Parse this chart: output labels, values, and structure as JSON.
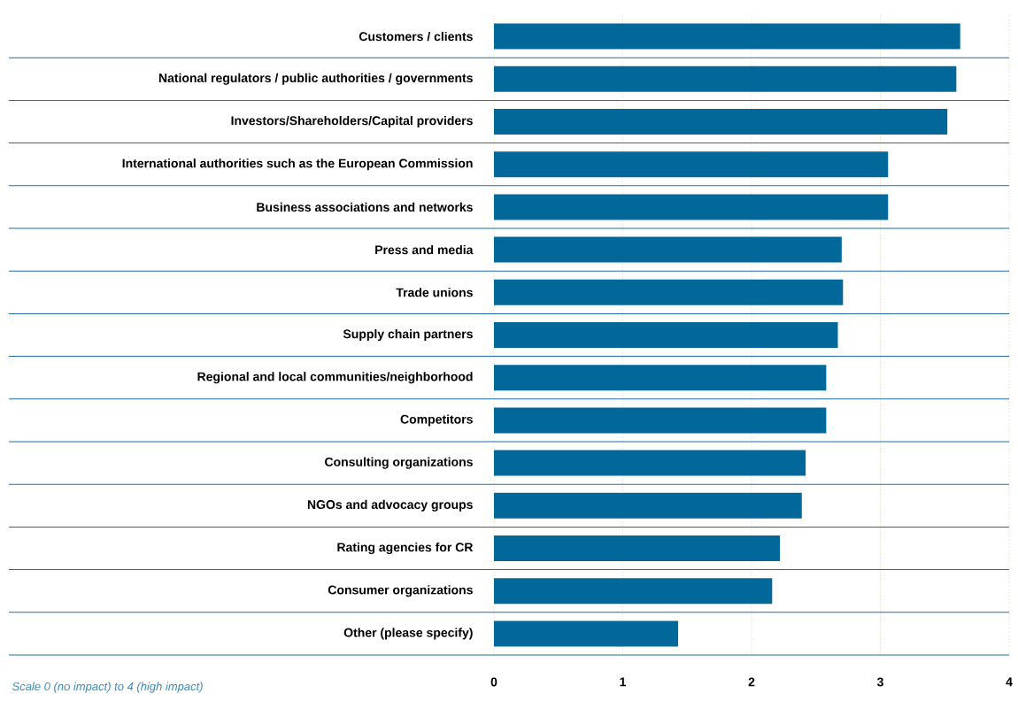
{
  "chart_data": {
    "type": "bar",
    "orientation": "horizontal",
    "categories": [
      "Customers / clients",
      "National regulators / public authorities / governments",
      "Investors/Shareholders/Capital providers",
      "International authorities such as the European Commission",
      "Business associations and networks",
      "Press and media",
      "Trade unions",
      "Supply chain partners",
      "Regional and local communities/neighborhood",
      "Competitors",
      "Consulting organizations",
      "NGOs and advocacy groups",
      "Rating agencies for CR",
      "Consumer organizations",
      "Other (please specify)"
    ],
    "values": [
      3.62,
      3.59,
      3.52,
      3.06,
      3.06,
      2.7,
      2.71,
      2.67,
      2.58,
      2.58,
      2.42,
      2.39,
      2.22,
      2.16,
      1.43
    ],
    "color": "#02689a",
    "xlim": [
      0,
      4
    ],
    "xticks": [
      0,
      1,
      2,
      3,
      4
    ],
    "grid": "x",
    "annotations": [
      "Scale 0 (no impact) to 4 (high impact)"
    ]
  }
}
